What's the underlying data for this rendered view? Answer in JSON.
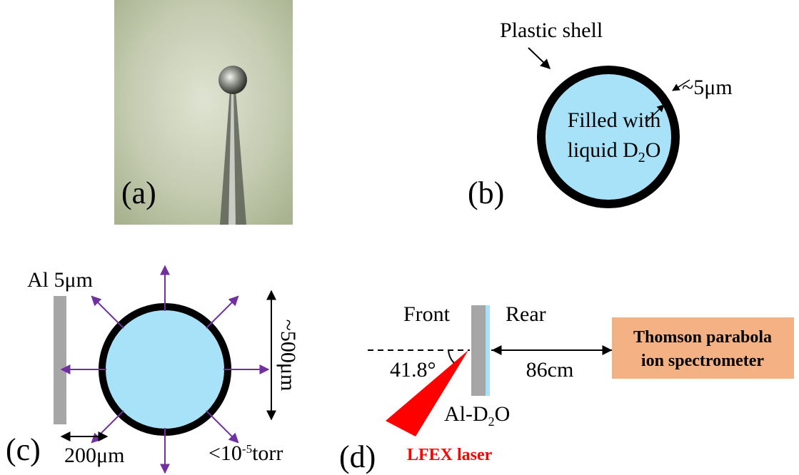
{
  "panels": {
    "a": {
      "label": "(a)"
    },
    "b": {
      "label": "(b)",
      "shell": "Plastic shell",
      "thickness": "~5μm",
      "fill_line1": "Filled with",
      "fill_line2": {
        "pre": "liquid D",
        "sub": "2",
        "post": "O"
      }
    },
    "c": {
      "label": "(c)",
      "foil": "Al 5μm",
      "diameter": "~500μm",
      "gap": "200μm",
      "pressure": {
        "pre": "<10",
        "sup": "-5",
        "post": "torr"
      }
    },
    "d": {
      "label": "(d)",
      "front": "Front",
      "rear": "Rear",
      "angle": "41.8°",
      "distance": "86cm",
      "target": {
        "pre": "Al-D",
        "sub": "2",
        "post": "O"
      },
      "laser": "LFEX laser",
      "spectrometer_line1": "Thomson parabola",
      "spectrometer_line2": "ion spectrometer"
    }
  }
}
